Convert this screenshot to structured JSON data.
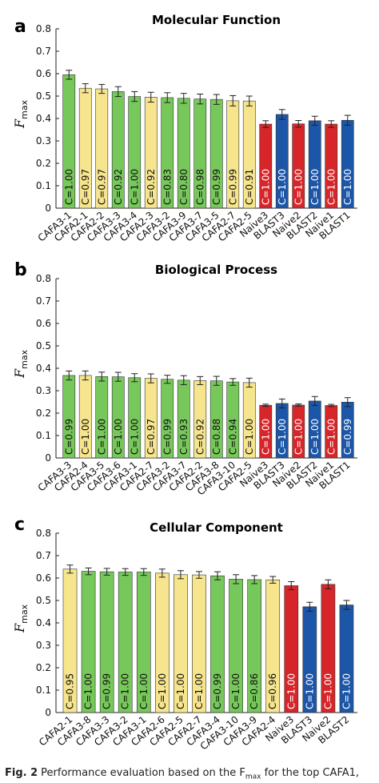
{
  "colors": {
    "cafa3": "#77c85a",
    "cafa2": "#f6e58c",
    "naive": "#d7262a",
    "blast": "#1c56a8",
    "axis": "#222222"
  },
  "caption": {
    "label": "Fig. 2",
    "text": "Performance evaluation based on the F",
    "sub": "max",
    "rest": " for the top CAFA1,"
  },
  "chart_data": [
    {
      "type": "bar",
      "panel": "a",
      "title": "Molecular Function",
      "xlabel": "",
      "ylabel": "F",
      "ylabel_sub": "max",
      "ylim": [
        0,
        0.8
      ],
      "yticks": [
        "0",
        "0.1",
        "0.2",
        "0.3",
        "0.4",
        "0.5",
        "0.6",
        "0.7",
        "0.8"
      ],
      "grid": false,
      "categories": [
        "CAFA3-1",
        "CAFA2-1",
        "CAFA2-2",
        "CAFA3-3",
        "CAFA3-4",
        "CAFA2-3",
        "CAFA3-2",
        "CAFA3-9",
        "CAFA3-7",
        "CAFA3-5",
        "CAFA2-7",
        "CAFA2-5",
        "Naive3",
        "BLAST3",
        "Naive2",
        "BLAST2",
        "Naive1",
        "BLAST1"
      ],
      "values": [
        0.595,
        0.535,
        0.532,
        0.52,
        0.498,
        0.495,
        0.493,
        0.49,
        0.487,
        0.485,
        0.479,
        0.478,
        0.375,
        0.418,
        0.376,
        0.39,
        0.375,
        0.392
      ],
      "errors": [
        0.02,
        0.02,
        0.02,
        0.022,
        0.022,
        0.022,
        0.022,
        0.022,
        0.022,
        0.022,
        0.023,
        0.022,
        0.015,
        0.022,
        0.015,
        0.02,
        0.015,
        0.022
      ],
      "groups": [
        "cafa3",
        "cafa2",
        "cafa2",
        "cafa3",
        "cafa3",
        "cafa2",
        "cafa3",
        "cafa3",
        "cafa3",
        "cafa3",
        "cafa2",
        "cafa2",
        "naive",
        "blast",
        "naive",
        "blast",
        "naive",
        "blast"
      ],
      "coverage": [
        "C=1.00",
        "C=0.97",
        "C=0.97",
        "C=0.92",
        "C=1.00",
        "C=0.92",
        "C=0.83",
        "C=0.80",
        "C=0.98",
        "C=0.99",
        "C=0.99",
        "C=0.91",
        "C=1.00",
        "C=1.00",
        "C=1.00",
        "C=1.00",
        "C=1.00",
        "C=1.00"
      ]
    },
    {
      "type": "bar",
      "panel": "b",
      "title": "Biological Process",
      "xlabel": "",
      "ylabel": "F",
      "ylabel_sub": "max",
      "ylim": [
        0,
        0.8
      ],
      "yticks": [
        "0",
        "0.1",
        "0.2",
        "0.3",
        "0.4",
        "0.5",
        "0.6",
        "0.7",
        "0.8"
      ],
      "grid": false,
      "categories": [
        "CAFA3-3",
        "CAFA2-4",
        "CAFA3-5",
        "CAFA3-6",
        "CAFA3-1",
        "CAFA2-7",
        "CAFA3-2",
        "CAFA3-7",
        "CAFA2-2",
        "CAFA3-8",
        "CAFA3-10",
        "CAFA2-5",
        "Naive3",
        "BLAST3",
        "Naive2",
        "BLAST2",
        "Naive1",
        "BLAST1"
      ],
      "values": [
        0.368,
        0.368,
        0.363,
        0.362,
        0.358,
        0.355,
        0.351,
        0.347,
        0.345,
        0.344,
        0.339,
        0.336,
        0.235,
        0.243,
        0.236,
        0.254,
        0.234,
        0.249
      ],
      "errors": [
        0.02,
        0.02,
        0.02,
        0.02,
        0.018,
        0.02,
        0.018,
        0.02,
        0.018,
        0.02,
        0.015,
        0.02,
        0.005,
        0.02,
        0.005,
        0.02,
        0.005,
        0.02
      ],
      "groups": [
        "cafa3",
        "cafa2",
        "cafa3",
        "cafa3",
        "cafa3",
        "cafa2",
        "cafa3",
        "cafa3",
        "cafa2",
        "cafa3",
        "cafa3",
        "cafa2",
        "naive",
        "blast",
        "naive",
        "blast",
        "naive",
        "blast"
      ],
      "coverage": [
        "C=0.99",
        "C=1.00",
        "C=1.00",
        "C=1.00",
        "C=1.00",
        "C=0.97",
        "C=0.99",
        "C=0.93",
        "C=0.92",
        "C=0.88",
        "C=0.94",
        "C=1.00",
        "C=1.00",
        "C=1.00",
        "C=1.00",
        "C=1.00",
        "C=1.00",
        "C=0.99"
      ]
    },
    {
      "type": "bar",
      "panel": "c",
      "title": "Cellular Component",
      "xlabel": "",
      "ylabel": "F",
      "ylabel_sub": "max",
      "ylim": [
        0,
        0.8
      ],
      "yticks": [
        "0",
        "0.1",
        "0.2",
        "0.3",
        "0.4",
        "0.5",
        "0.6",
        "0.7",
        "0.8"
      ],
      "grid": false,
      "categories": [
        "CAFA2-1",
        "CAFA3-8",
        "CAFA3-3",
        "CAFA3-2",
        "CAFA3-1",
        "CAFA2-6",
        "CAFA2-5",
        "CAFA2-7",
        "CAFA3-4",
        "CAFA3-10",
        "CAFA3-9",
        "CAFA2-4",
        "Naive3",
        "BLAST3",
        "Naive2",
        "BLAST2"
      ],
      "values": [
        0.64,
        0.63,
        0.628,
        0.627,
        0.627,
        0.622,
        0.615,
        0.614,
        0.61,
        0.595,
        0.593,
        0.592,
        0.566,
        0.472,
        0.572,
        0.48
      ],
      "errors": [
        0.018,
        0.015,
        0.015,
        0.015,
        0.015,
        0.018,
        0.018,
        0.015,
        0.018,
        0.02,
        0.018,
        0.015,
        0.018,
        0.02,
        0.02,
        0.02
      ],
      "groups": [
        "cafa2",
        "cafa3",
        "cafa3",
        "cafa3",
        "cafa3",
        "cafa2",
        "cafa2",
        "cafa2",
        "cafa3",
        "cafa3",
        "cafa3",
        "cafa2",
        "naive",
        "blast",
        "naive",
        "blast"
      ],
      "coverage": [
        "C=0.95",
        "C=1.00",
        "C=0.99",
        "C=1.00",
        "C=1.00",
        "C=1.00",
        "C=1.00",
        "C=1.00",
        "C=0.99",
        "C=1.00",
        "C=0.86",
        "C=0.96",
        "C=1.00",
        "C=1.00",
        "C=1.00",
        "C=1.00"
      ]
    }
  ]
}
